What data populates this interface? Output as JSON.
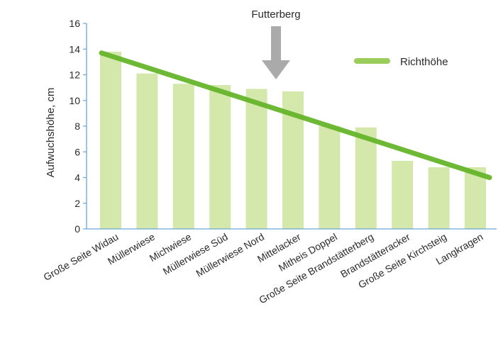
{
  "chart_data": {
    "type": "bar",
    "categories": [
      "Große Seite Widau",
      "Müllerwiese",
      "Michwiese",
      "Müllerwiese Süd",
      "Müllerwiese Nord",
      "Mittelacker",
      "Mitheis Doppel",
      "Große Seite Brandstätterberg",
      "Brandstätteracker",
      "Große Seite Kirchsteig",
      "Langkragen"
    ],
    "values": [
      13.8,
      12.1,
      11.3,
      11.2,
      10.9,
      10.7,
      8.0,
      7.9,
      5.3,
      4.8,
      4.8
    ],
    "ylabel": "Aufwuchshöhe, cm",
    "xlabel": "",
    "ylim": [
      0,
      16
    ],
    "yticks": [
      0,
      2,
      4,
      6,
      8,
      10,
      12,
      14,
      16
    ],
    "grid": false,
    "reference_line": {
      "name": "Richthöhe",
      "start": 13.7,
      "end": 4.0
    },
    "annotation": {
      "text": "Futterberg",
      "category": "Mittelacker"
    },
    "legend": {
      "label": "Richthöhe",
      "position": "top-right"
    },
    "colors": {
      "bar": "#d3e8aa",
      "line": "#66b52b",
      "axis": "#6aa6d8",
      "arrow": "#a8a8a8"
    }
  }
}
